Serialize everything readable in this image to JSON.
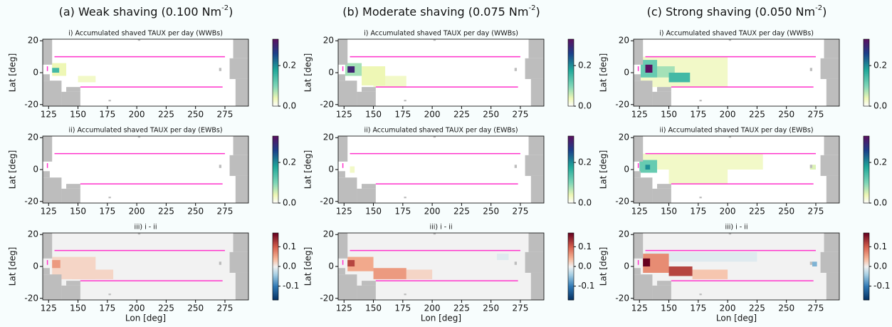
{
  "column_titles": [
    {
      "text": "(a) Weak shaving (0.100 Nm",
      "sup": "-2",
      "end": ")"
    },
    {
      "text": "(b) Moderate shaving (0.075 Nm",
      "sup": "-2",
      "end": ")"
    },
    {
      "text": "(c) Strong shaving (0.050 Nm",
      "sup": "-2",
      "end": ")"
    }
  ],
  "lines": {
    "color": "#ff33cc",
    "segments": [
      {
        "lon": [
          130,
          275
        ],
        "lat": [
          10,
          10
        ]
      },
      {
        "lon": [
          152,
          273
        ],
        "lat": [
          -9,
          -9
        ]
      },
      {
        "lon": [
          124,
          124
        ],
        "lat": [
          1,
          4
        ]
      }
    ]
  },
  "colormaps": {
    "sequential": [
      [
        0,
        "#ffffff"
      ],
      [
        0.04,
        "#eef7b5"
      ],
      [
        0.1,
        "#7fd6b8"
      ],
      [
        0.18,
        "#1fa89a"
      ],
      [
        0.26,
        "#1b3f8a"
      ],
      [
        0.33,
        "#5a1060"
      ]
    ],
    "diverging": [
      [
        -0.17,
        "#053061"
      ],
      [
        -0.1,
        "#2f79b5"
      ],
      [
        -0.04,
        "#a7d0e4"
      ],
      [
        0,
        "#f2f2f2"
      ],
      [
        0.04,
        "#f7b799"
      ],
      [
        0.1,
        "#d6604d"
      ],
      [
        0.17,
        "#67001f"
      ]
    ]
  },
  "chart_data": [
    {
      "type": "heatmap",
      "title": "i) Accumulated shaved TAUX per day (WWBs)",
      "ylabel": "Lat [deg]",
      "xlim": [
        120,
        295
      ],
      "ylim": [
        -21,
        21
      ],
      "xticks": [
        125,
        150,
        175,
        200,
        225,
        250,
        275
      ],
      "yticks": [
        -20,
        0,
        20
      ],
      "colormap": "sequential",
      "cbar_ticks": [
        {
          "value": 0,
          "label": "0.0"
        },
        0.2
      ],
      "cells": [
        [
          120,
          295,
          -21,
          21,
          0
        ],
        [
          128,
          140,
          -2,
          6,
          0.04
        ],
        [
          150,
          165,
          -6,
          -2,
          0.03
        ],
        [
          128,
          134,
          0,
          3,
          0.15
        ]
      ]
    },
    {
      "type": "heatmap",
      "title": "i) Accumulated shaved TAUX per day (WWBs)",
      "ylabel": "Lat [deg]",
      "xlim": [
        120,
        295
      ],
      "ylim": [
        -21,
        21
      ],
      "xticks": [
        125,
        150,
        175,
        200,
        225,
        250,
        275
      ],
      "yticks": [
        -20,
        0,
        20
      ],
      "colormap": "sequential",
      "cbar_ticks": [
        {
          "value": 0,
          "label": "0.0"
        },
        0.2
      ],
      "cells": [
        [
          120,
          295,
          -21,
          21,
          0
        ],
        [
          150,
          178,
          -9,
          -2,
          0.03
        ],
        [
          140,
          160,
          -8,
          4,
          0.04
        ],
        [
          126,
          140,
          -2,
          6,
          0.08
        ],
        [
          128,
          134,
          0,
          4,
          0.3
        ]
      ]
    },
    {
      "type": "heatmap",
      "title": "i) Accumulated shaved TAUX per day (WWBs)",
      "ylabel": "Lat [deg]",
      "xlim": [
        120,
        295
      ],
      "ylim": [
        -21,
        21
      ],
      "xticks": [
        125,
        150,
        175,
        200,
        225,
        250,
        275
      ],
      "yticks": [
        -20,
        0,
        20
      ],
      "colormap": "sequential",
      "cbar_ticks": [
        {
          "value": 0,
          "label": "0.0"
        },
        0.2
      ],
      "cells": [
        [
          120,
          295,
          -21,
          21,
          0
        ],
        [
          126,
          200,
          -9,
          10,
          0.03
        ],
        [
          140,
          155,
          -3,
          4,
          0.08
        ],
        [
          126,
          140,
          -3,
          8,
          0.12
        ],
        [
          150,
          168,
          -6,
          0,
          0.15
        ],
        [
          130,
          136,
          0,
          5,
          0.33
        ]
      ]
    },
    {
      "type": "heatmap",
      "title": "ii) Accumulated shaved TAUX per day (EWBs)",
      "ylabel": "Lat [deg]",
      "xlim": [
        120,
        295
      ],
      "ylim": [
        -21,
        21
      ],
      "xticks": [
        125,
        150,
        175,
        200,
        225,
        250,
        275
      ],
      "yticks": [
        -20,
        0,
        20
      ],
      "colormap": "sequential",
      "cbar_ticks": [
        {
          "value": 0,
          "label": "0.0"
        },
        0.2
      ],
      "cells": [
        [
          120,
          295,
          -21,
          21,
          0
        ]
      ]
    },
    {
      "type": "heatmap",
      "title": "ii) Accumulated shaved TAUX per day (EWBs)",
      "ylabel": "Lat [deg]",
      "xlim": [
        120,
        295
      ],
      "ylim": [
        -21,
        21
      ],
      "xticks": [
        125,
        150,
        175,
        200,
        225,
        250,
        275
      ],
      "yticks": [
        -20,
        0,
        20
      ],
      "colormap": "sequential",
      "cbar_ticks": [
        {
          "value": 0,
          "label": "0.0"
        },
        0.2
      ],
      "cells": [
        [
          120,
          295,
          -21,
          21,
          0
        ],
        [
          130,
          134,
          -2,
          2,
          0.03
        ]
      ]
    },
    {
      "type": "heatmap",
      "title": "ii) Accumulated shaved TAUX per day (EWBs)",
      "ylabel": "Lat [deg]",
      "xlim": [
        120,
        295
      ],
      "ylim": [
        -21,
        21
      ],
      "xticks": [
        125,
        150,
        175,
        200,
        225,
        250,
        275
      ],
      "yticks": [
        -20,
        0,
        20
      ],
      "colormap": "sequential",
      "cbar_ticks": [
        {
          "value": 0,
          "label": "0.0"
        },
        0.2
      ],
      "cells": [
        [
          120,
          295,
          -21,
          21,
          0
        ],
        [
          125,
          230,
          0,
          10,
          0.03
        ],
        [
          150,
          200,
          -9,
          0,
          0.03
        ],
        [
          125,
          140,
          -2,
          6,
          0.12
        ],
        [
          130,
          134,
          0,
          3,
          0.2
        ],
        [
          270,
          275,
          0,
          3,
          0.05
        ]
      ]
    },
    {
      "type": "heatmap",
      "title": "iii) i - ii",
      "ylabel": "Lat [deg]",
      "xlabel": "Lon [deg]",
      "xlim": [
        120,
        295
      ],
      "ylim": [
        -21,
        21
      ],
      "xticks": [
        125,
        150,
        175,
        200,
        225,
        250,
        275
      ],
      "yticks": [
        -20,
        0,
        20
      ],
      "colormap": "diverging",
      "cbar_ticks": [
        -0.1,
        {
          "value": 0,
          "label": "0.0"
        },
        0.1
      ],
      "cells": [
        [
          120,
          295,
          -21,
          21,
          0
        ],
        [
          128,
          165,
          -8,
          6,
          0.02
        ],
        [
          145,
          180,
          -8,
          -2,
          0.02
        ],
        [
          128,
          135,
          -1,
          4,
          0.06
        ]
      ]
    },
    {
      "type": "heatmap",
      "title": "iii) i - ii",
      "ylabel": "Lat [deg]",
      "xlabel": "Lon [deg]",
      "xlim": [
        120,
        295
      ],
      "ylim": [
        -21,
        21
      ],
      "xticks": [
        125,
        150,
        175,
        200,
        225,
        250,
        275
      ],
      "yticks": [
        -20,
        0,
        20
      ],
      "colormap": "diverging",
      "cbar_ticks": [
        -0.1,
        {
          "value": 0,
          "label": "0.0"
        },
        0.1
      ],
      "cells": [
        [
          120,
          295,
          -21,
          21,
          0
        ],
        [
          178,
          200,
          -8,
          -2,
          0.02
        ],
        [
          128,
          150,
          -3,
          6,
          0.05
        ],
        [
          150,
          178,
          -8,
          -1,
          0.06
        ],
        [
          128,
          134,
          0,
          4,
          0.12
        ],
        [
          255,
          265,
          4,
          8,
          -0.01
        ]
      ]
    },
    {
      "type": "heatmap",
      "title": "iii) i - ii",
      "ylabel": "Lat [deg]",
      "xlabel": "Lon [deg]",
      "xlim": [
        120,
        295
      ],
      "ylim": [
        -21,
        21
      ],
      "xticks": [
        125,
        150,
        175,
        200,
        225,
        250,
        275
      ],
      "yticks": [
        -20,
        0,
        20
      ],
      "colormap": "diverging",
      "cbar_ticks": [
        -0.1,
        {
          "value": 0,
          "label": "0.0"
        },
        0.1
      ],
      "cells": [
        [
          120,
          295,
          -21,
          21,
          0
        ],
        [
          130,
          225,
          3,
          9,
          -0.01
        ],
        [
          170,
          200,
          -8,
          -2,
          0.03
        ],
        [
          128,
          150,
          -4,
          8,
          0.07
        ],
        [
          150,
          170,
          -6,
          0,
          0.12
        ],
        [
          128,
          134,
          0,
          5,
          0.17
        ],
        [
          272,
          276,
          0,
          3,
          -0.06
        ]
      ]
    }
  ]
}
